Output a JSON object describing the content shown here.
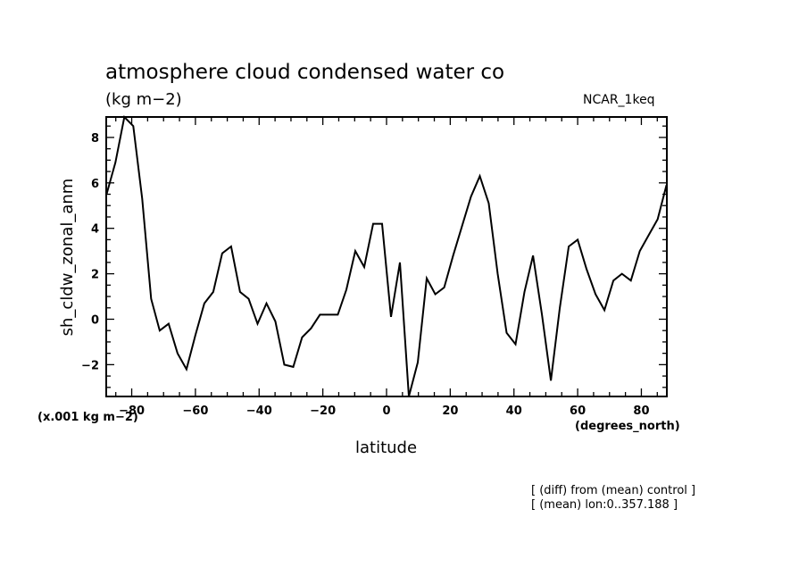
{
  "chart_data": {
    "type": "line",
    "title": "atmosphere cloud condensed water co",
    "units_label": "(kg m−2)",
    "model_label": "NCAR_1keq",
    "ylabel": "sh_cldw_zonal_anm",
    "xlabel": "latitude",
    "x_units": "(degrees_north)",
    "y_scale_note": "(x.001 kg m−2)",
    "annotations": [
      "[ (diff) from (mean) control ]",
      "[ (mean) lon:0..357.188 ]"
    ],
    "xlim": [
      -88,
      88
    ],
    "ylim": [
      -3.4,
      8.9
    ],
    "xticks": [
      -80,
      -60,
      -40,
      -20,
      0,
      20,
      40,
      60,
      80
    ],
    "yticks": [
      -2,
      0,
      2,
      4,
      6,
      8
    ],
    "grid": false,
    "series": [
      {
        "x": [
          -87.9,
          -85.1,
          -82.3,
          -79.5,
          -76.7,
          -73.9,
          -71.2,
          -68.4,
          -65.6,
          -62.8,
          -60.0,
          -57.2,
          -54.4,
          -51.6,
          -48.8,
          -46.0,
          -43.3,
          -40.5,
          -37.7,
          -34.9,
          -32.1,
          -29.3,
          -26.5,
          -23.7,
          -20.9,
          -18.1,
          -15.3,
          -12.6,
          -9.8,
          -7.0,
          -4.2,
          -1.4,
          1.4,
          4.2,
          7.0,
          9.8,
          12.6,
          15.3,
          18.1,
          20.9,
          23.7,
          26.5,
          29.3,
          32.1,
          34.9,
          37.7,
          40.5,
          43.3,
          46.0,
          48.8,
          51.6,
          54.4,
          57.2,
          60.0,
          62.8,
          65.6,
          68.4,
          71.2,
          73.9,
          76.7,
          79.5,
          82.3,
          85.1,
          87.9
        ],
        "y": [
          5.5,
          6.9,
          8.9,
          8.5,
          5.3,
          0.9,
          -0.5,
          -0.2,
          -1.5,
          -2.2,
          -0.7,
          0.7,
          1.2,
          2.9,
          3.2,
          1.2,
          0.9,
          -0.2,
          0.7,
          -0.1,
          -2.0,
          -2.1,
          -0.8,
          -0.4,
          0.2,
          0.2,
          0.2,
          1.3,
          3.0,
          2.3,
          4.2,
          4.2,
          0.1,
          2.5,
          -3.4,
          -1.9,
          1.8,
          1.1,
          1.4,
          2.8,
          4.1,
          5.4,
          6.3,
          5.1,
          2.0,
          -0.6,
          -1.1,
          1.2,
          2.8,
          0.2,
          -2.7,
          0.5,
          3.2,
          3.5,
          2.2,
          1.1,
          0.4,
          1.7,
          2.0,
          1.7,
          3.0,
          3.7,
          4.4,
          5.9
        ]
      }
    ]
  }
}
